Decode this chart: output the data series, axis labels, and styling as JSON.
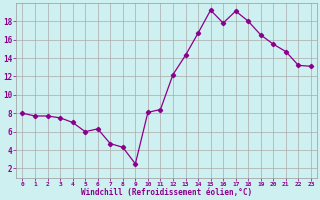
{
  "x_vals": [
    0,
    1,
    2,
    3,
    4,
    5,
    6,
    7,
    8,
    9,
    10,
    11,
    12,
    13,
    14,
    15,
    16,
    17,
    18,
    19,
    20,
    21,
    22,
    23
  ],
  "y_vals": [
    8.0,
    7.7,
    7.7,
    7.5,
    7.0,
    6.0,
    6.3,
    4.7,
    4.3,
    2.5,
    8.1,
    8.4,
    12.2,
    14.3,
    16.7,
    19.2,
    17.8,
    19.1,
    18.0,
    16.5,
    15.5,
    14.7,
    13.2,
    13.1
  ],
  "line_color": "#8B008B",
  "marker": "D",
  "markersize": 2.2,
  "linewidth": 0.9,
  "bg_color": "#cff0f0",
  "grid_color": "#aaaaaa",
  "xlabel": "Windchill (Refroidissement éolien,°C)",
  "xlabel_color": "#8B008B",
  "tick_color": "#8B008B",
  "ylim": [
    1,
    20
  ],
  "xlim": [
    -0.5,
    23.5
  ],
  "yticks": [
    2,
    4,
    6,
    8,
    10,
    12,
    14,
    16,
    18
  ],
  "xticks": [
    0,
    1,
    2,
    3,
    4,
    5,
    6,
    7,
    8,
    9,
    10,
    11,
    12,
    13,
    14,
    15,
    16,
    17,
    18,
    19,
    20,
    21,
    22,
    23
  ]
}
